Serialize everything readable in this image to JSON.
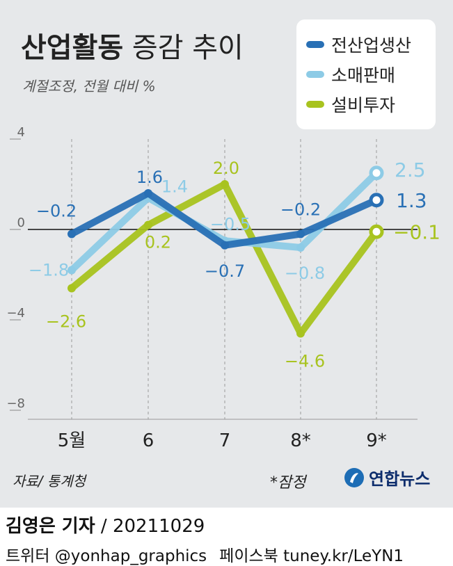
{
  "header": {
    "title_bold": "산업활동",
    "title_rest": "증감 추이",
    "subtitle": "계절조정, 전월 대비 %"
  },
  "chart_data": {
    "type": "line",
    "categories": [
      "5월",
      "6",
      "7",
      "8*",
      "9*"
    ],
    "yticks": [
      "4",
      "0",
      "−4",
      "−8"
    ],
    "ylim": [
      -8,
      4
    ],
    "grid": "vertical dashed",
    "legend_position": "top-right",
    "series": [
      {
        "name": "전산업생산",
        "color": "#2970b5",
        "values": [
          -0.2,
          1.6,
          -0.7,
          -0.2,
          1.3
        ],
        "labels": [
          "−0.2",
          "1.6",
          "−0.7",
          "−0.2",
          "1.3"
        ]
      },
      {
        "name": "소매판매",
        "color": "#8dcbe6",
        "values": [
          -1.8,
          1.4,
          -0.5,
          -0.8,
          2.5
        ],
        "labels": [
          "−1.8",
          "1.4",
          "−0.5",
          "−0.8",
          "2.5"
        ]
      },
      {
        "name": "설비투자",
        "color": "#a8c31f",
        "values": [
          -2.6,
          0.2,
          2.0,
          -4.6,
          -0.1
        ],
        "labels": [
          "−2.6",
          "0.2",
          "2.0",
          "−4.6",
          "−0.1"
        ]
      }
    ]
  },
  "footer": {
    "source": "자료/ 통계청",
    "preliminary": "*잠정",
    "logo_text": "연합뉴스",
    "reporter_name": "김영은 기자",
    "reporter_date": " / 20211029",
    "twitter": "트위터 @yonhap_graphics",
    "facebook": "페이스북 tuney.kr/LeYN1"
  }
}
